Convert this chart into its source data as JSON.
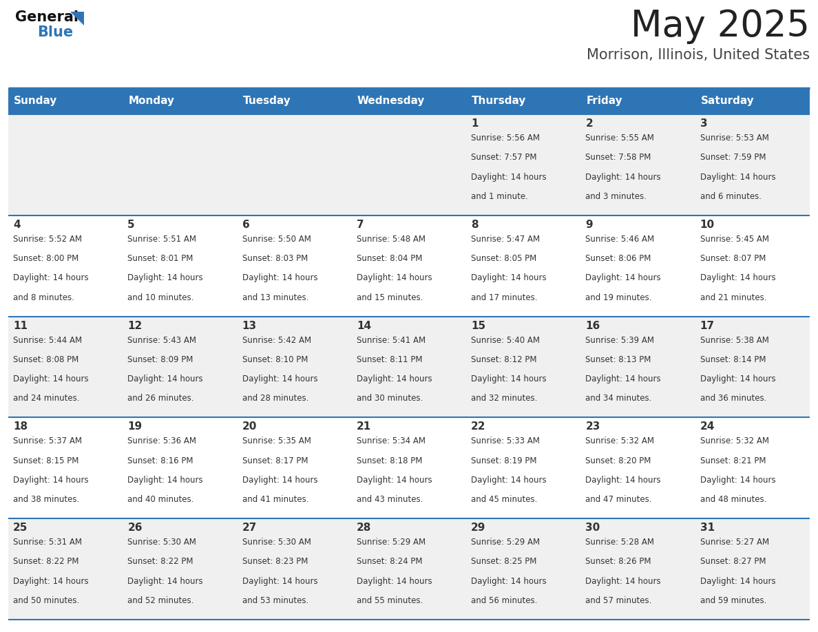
{
  "title": "May 2025",
  "subtitle": "Morrison, Illinois, United States",
  "header_bg": "#2E75B6",
  "header_text_color": "#FFFFFF",
  "day_names": [
    "Sunday",
    "Monday",
    "Tuesday",
    "Wednesday",
    "Thursday",
    "Friday",
    "Saturday"
  ],
  "row_bg_odd": "#F0F0F0",
  "row_bg_even": "#FFFFFF",
  "cell_text_color": "#333333",
  "date_text_color": "#333333",
  "border_color": "#2E75B6",
  "logo_general_color": "#111111",
  "logo_blue_color": "#2E75B6",
  "calendar": [
    [
      null,
      null,
      null,
      null,
      {
        "day": 1,
        "sunrise": "5:56 AM",
        "sunset": "7:57 PM",
        "daylight": "14 hours",
        "daylight2": "and 1 minute."
      },
      {
        "day": 2,
        "sunrise": "5:55 AM",
        "sunset": "7:58 PM",
        "daylight": "14 hours",
        "daylight2": "and 3 minutes."
      },
      {
        "day": 3,
        "sunrise": "5:53 AM",
        "sunset": "7:59 PM",
        "daylight": "14 hours",
        "daylight2": "and 6 minutes."
      }
    ],
    [
      {
        "day": 4,
        "sunrise": "5:52 AM",
        "sunset": "8:00 PM",
        "daylight": "14 hours",
        "daylight2": "and 8 minutes."
      },
      {
        "day": 5,
        "sunrise": "5:51 AM",
        "sunset": "8:01 PM",
        "daylight": "14 hours",
        "daylight2": "and 10 minutes."
      },
      {
        "day": 6,
        "sunrise": "5:50 AM",
        "sunset": "8:03 PM",
        "daylight": "14 hours",
        "daylight2": "and 13 minutes."
      },
      {
        "day": 7,
        "sunrise": "5:48 AM",
        "sunset": "8:04 PM",
        "daylight": "14 hours",
        "daylight2": "and 15 minutes."
      },
      {
        "day": 8,
        "sunrise": "5:47 AM",
        "sunset": "8:05 PM",
        "daylight": "14 hours",
        "daylight2": "and 17 minutes."
      },
      {
        "day": 9,
        "sunrise": "5:46 AM",
        "sunset": "8:06 PM",
        "daylight": "14 hours",
        "daylight2": "and 19 minutes."
      },
      {
        "day": 10,
        "sunrise": "5:45 AM",
        "sunset": "8:07 PM",
        "daylight": "14 hours",
        "daylight2": "and 21 minutes."
      }
    ],
    [
      {
        "day": 11,
        "sunrise": "5:44 AM",
        "sunset": "8:08 PM",
        "daylight": "14 hours",
        "daylight2": "and 24 minutes."
      },
      {
        "day": 12,
        "sunrise": "5:43 AM",
        "sunset": "8:09 PM",
        "daylight": "14 hours",
        "daylight2": "and 26 minutes."
      },
      {
        "day": 13,
        "sunrise": "5:42 AM",
        "sunset": "8:10 PM",
        "daylight": "14 hours",
        "daylight2": "and 28 minutes."
      },
      {
        "day": 14,
        "sunrise": "5:41 AM",
        "sunset": "8:11 PM",
        "daylight": "14 hours",
        "daylight2": "and 30 minutes."
      },
      {
        "day": 15,
        "sunrise": "5:40 AM",
        "sunset": "8:12 PM",
        "daylight": "14 hours",
        "daylight2": "and 32 minutes."
      },
      {
        "day": 16,
        "sunrise": "5:39 AM",
        "sunset": "8:13 PM",
        "daylight": "14 hours",
        "daylight2": "and 34 minutes."
      },
      {
        "day": 17,
        "sunrise": "5:38 AM",
        "sunset": "8:14 PM",
        "daylight": "14 hours",
        "daylight2": "and 36 minutes."
      }
    ],
    [
      {
        "day": 18,
        "sunrise": "5:37 AM",
        "sunset": "8:15 PM",
        "daylight": "14 hours",
        "daylight2": "and 38 minutes."
      },
      {
        "day": 19,
        "sunrise": "5:36 AM",
        "sunset": "8:16 PM",
        "daylight": "14 hours",
        "daylight2": "and 40 minutes."
      },
      {
        "day": 20,
        "sunrise": "5:35 AM",
        "sunset": "8:17 PM",
        "daylight": "14 hours",
        "daylight2": "and 41 minutes."
      },
      {
        "day": 21,
        "sunrise": "5:34 AM",
        "sunset": "8:18 PM",
        "daylight": "14 hours",
        "daylight2": "and 43 minutes."
      },
      {
        "day": 22,
        "sunrise": "5:33 AM",
        "sunset": "8:19 PM",
        "daylight": "14 hours",
        "daylight2": "and 45 minutes."
      },
      {
        "day": 23,
        "sunrise": "5:32 AM",
        "sunset": "8:20 PM",
        "daylight": "14 hours",
        "daylight2": "and 47 minutes."
      },
      {
        "day": 24,
        "sunrise": "5:32 AM",
        "sunset": "8:21 PM",
        "daylight": "14 hours",
        "daylight2": "and 48 minutes."
      }
    ],
    [
      {
        "day": 25,
        "sunrise": "5:31 AM",
        "sunset": "8:22 PM",
        "daylight": "14 hours",
        "daylight2": "and 50 minutes."
      },
      {
        "day": 26,
        "sunrise": "5:30 AM",
        "sunset": "8:22 PM",
        "daylight": "14 hours",
        "daylight2": "and 52 minutes."
      },
      {
        "day": 27,
        "sunrise": "5:30 AM",
        "sunset": "8:23 PM",
        "daylight": "14 hours",
        "daylight2": "and 53 minutes."
      },
      {
        "day": 28,
        "sunrise": "5:29 AM",
        "sunset": "8:24 PM",
        "daylight": "14 hours",
        "daylight2": "and 55 minutes."
      },
      {
        "day": 29,
        "sunrise": "5:29 AM",
        "sunset": "8:25 PM",
        "daylight": "14 hours",
        "daylight2": "and 56 minutes."
      },
      {
        "day": 30,
        "sunrise": "5:28 AM",
        "sunset": "8:26 PM",
        "daylight": "14 hours",
        "daylight2": "and 57 minutes."
      },
      {
        "day": 31,
        "sunrise": "5:27 AM",
        "sunset": "8:27 PM",
        "daylight": "14 hours",
        "daylight2": "and 59 minutes."
      }
    ]
  ]
}
